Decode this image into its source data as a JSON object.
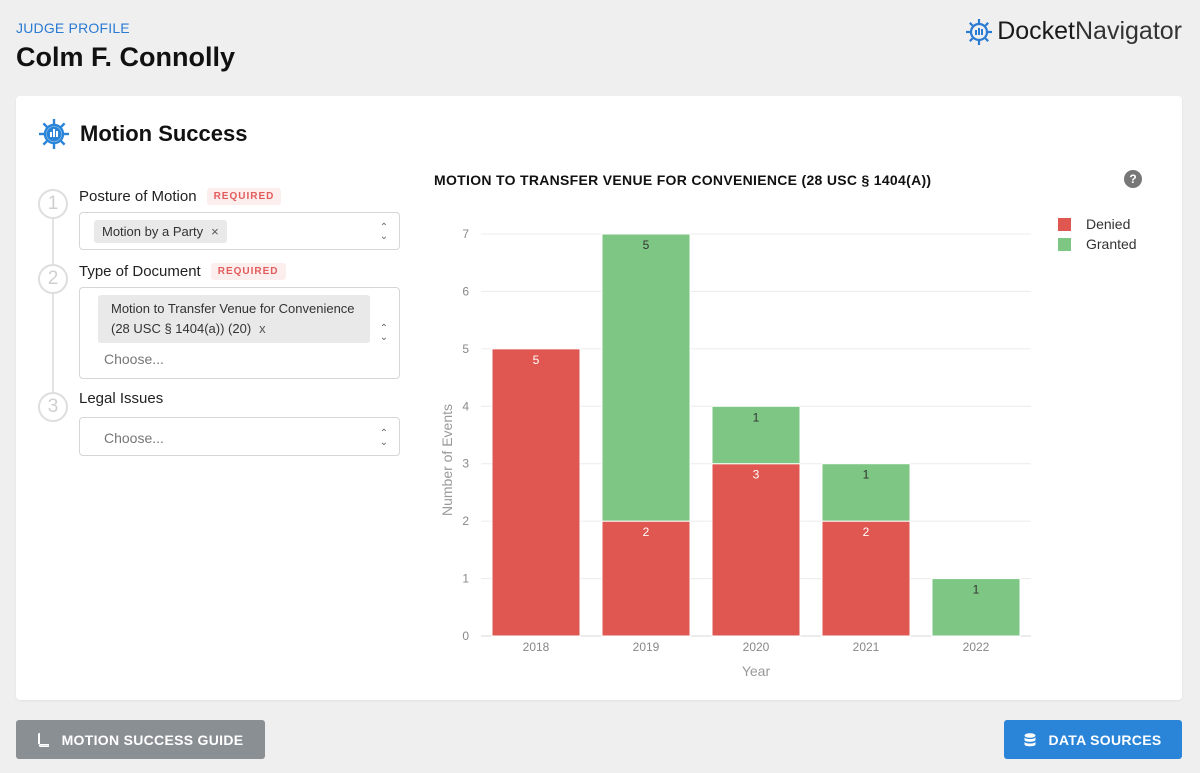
{
  "header": {
    "eyebrow": "JUDGE PROFILE",
    "judge_name": "Colm F. Connolly",
    "brand_part1": "Docket",
    "brand_part2": "Navigator",
    "brand_color": "#2a7bd3"
  },
  "card": {
    "title": "Motion Success",
    "title_icon": "ship-wheel-chart-icon"
  },
  "filters": [
    {
      "number": "1",
      "label": "Posture of Motion",
      "required_badge": "REQUIRED",
      "selected": [
        "Motion by a Party"
      ],
      "chip_close": "×"
    },
    {
      "number": "2",
      "label": "Type of Document",
      "required_badge": "REQUIRED",
      "selected_line1": "Motion to Transfer Venue for Convenience",
      "selected_line2": "(28 USC § 1404(a)) (20)",
      "chip_close": "x",
      "placeholder": "Choose..."
    },
    {
      "number": "3",
      "label": "Legal Issues",
      "placeholder": "Choose..."
    }
  ],
  "chart_help": "?",
  "chart_data": {
    "type": "bar",
    "stacked": true,
    "title": "MOTION TO TRANSFER VENUE FOR CONVENIENCE (28 USC § 1404(A))",
    "xlabel": "Year",
    "ylabel": "Number of Events",
    "categories": [
      "2018",
      "2019",
      "2020",
      "2021",
      "2022"
    ],
    "series": [
      {
        "name": "Denied",
        "color": "#e05650",
        "values": [
          5,
          2,
          3,
          2,
          0
        ]
      },
      {
        "name": "Granted",
        "color": "#7dc683",
        "values": [
          0,
          5,
          1,
          1,
          1
        ]
      }
    ],
    "ylim": [
      0,
      7
    ],
    "yticks": [
      0,
      1,
      2,
      3,
      4,
      5,
      6,
      7
    ],
    "grid": true,
    "legend": "top-right"
  },
  "footer": {
    "guide_label": "MOTION SUCCESS GUIDE",
    "sources_label": "DATA SOURCES",
    "guide_color": "#8a8f94",
    "sources_color": "#2a85d9"
  }
}
